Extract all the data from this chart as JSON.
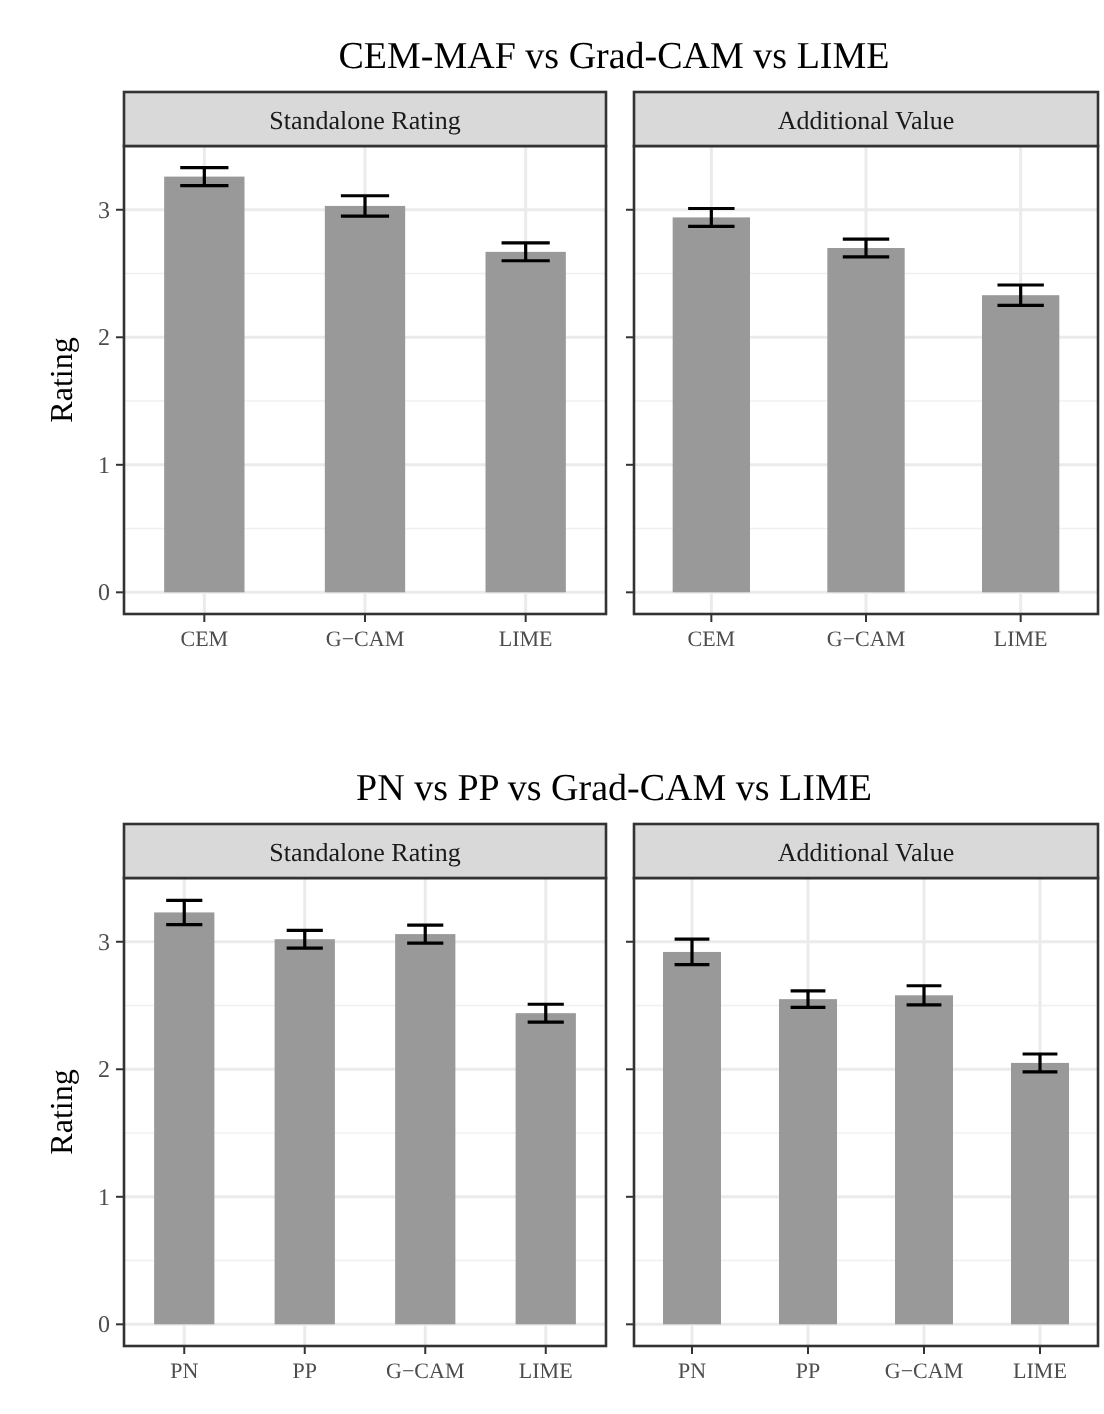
{
  "chart_data": [
    {
      "type": "bar",
      "title": "CEM-MAF vs Grad-CAM vs LIME",
      "subtitle": "Standalone Rating",
      "ylabel": "Rating",
      "categories": [
        "CEM",
        "G−CAM",
        "LIME"
      ],
      "values": [
        3.26,
        3.03,
        2.67
      ],
      "errors": [
        0.07,
        0.08,
        0.07
      ],
      "color": "#999999",
      "ylim": [
        -0.17,
        3.5
      ],
      "yticks": [
        0,
        1,
        2,
        3
      ],
      "grid": true
    },
    {
      "type": "bar",
      "subtitle": "Additional Value",
      "categories": [
        "CEM",
        "G−CAM",
        "LIME"
      ],
      "values": [
        2.94,
        2.7,
        2.33
      ],
      "errors": [
        0.07,
        0.07,
        0.08
      ],
      "color": "#999999",
      "ylim": [
        -0.17,
        3.5
      ],
      "yticks": [
        0,
        1,
        2,
        3
      ],
      "grid": true,
      "tick_labels": "x"
    },
    {
      "type": "bar",
      "title": "PN vs PP vs Grad-CAM vs LIME",
      "subtitle": "Standalone Rating",
      "ylabel": "Rating",
      "categories": [
        "PN",
        "PP",
        "G−CAM",
        "LIME"
      ],
      "values": [
        3.23,
        3.02,
        3.06,
        2.44
      ],
      "errors": [
        0.095,
        0.07,
        0.07,
        0.07
      ],
      "color": "#999999",
      "ylim": [
        -0.17,
        3.5
      ],
      "yticks": [
        0,
        1,
        2,
        3
      ],
      "grid": true
    },
    {
      "type": "bar",
      "subtitle": "Additional Value",
      "categories": [
        "PN",
        "PP",
        "G−CAM",
        "LIME"
      ],
      "values": [
        2.92,
        2.55,
        2.58,
        2.05
      ],
      "errors": [
        0.1,
        0.065,
        0.075,
        0.07
      ],
      "color": "#999999",
      "ylim": [
        -0.17,
        3.5
      ],
      "yticks": [
        0,
        1,
        2,
        3
      ],
      "grid": true,
      "tick_labels": "x"
    }
  ]
}
